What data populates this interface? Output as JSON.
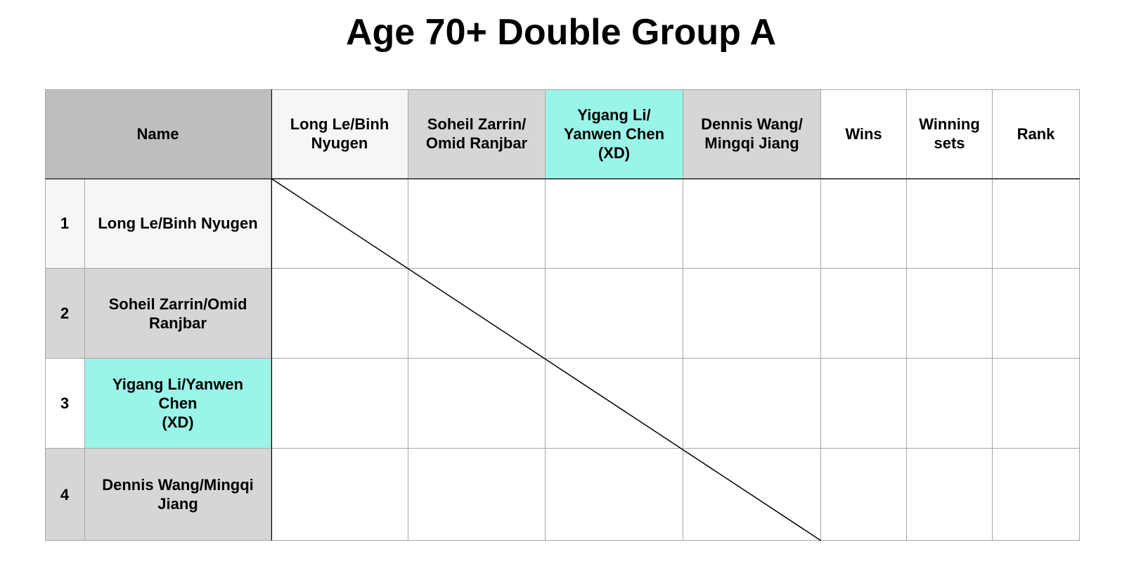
{
  "title": "Age 70+ Double Group A",
  "colors": {
    "header_gray": "#bdbfbe",
    "light_gray": "#d6d6d6",
    "off_white": "#f5f6f6",
    "mint": "#9af5e8",
    "white": "#ffffff",
    "grid_line": "#a6a6a6"
  },
  "header": {
    "name": "Name",
    "opponents": [
      "Long Le/Binh\nNyugen",
      "Soheil Zarrin/\nOmid Ranjbar",
      "Yigang Li/\nYanwen Chen\n(XD)",
      "Dennis Wang/\nMingqi Jiang"
    ],
    "wins": "Wins",
    "winning_sets": "Winning\nsets",
    "rank": "Rank"
  },
  "rows": [
    {
      "number": "1",
      "name": "Long Le/Binh Nyugen"
    },
    {
      "number": "2",
      "name": "Soheil Zarrin/Omid\nRanjbar"
    },
    {
      "number": "3",
      "name": "Yigang Li/Yanwen\nChen\n(XD)"
    },
    {
      "number": "4",
      "name": "Dennis Wang/Mingqi\nJiang"
    }
  ]
}
